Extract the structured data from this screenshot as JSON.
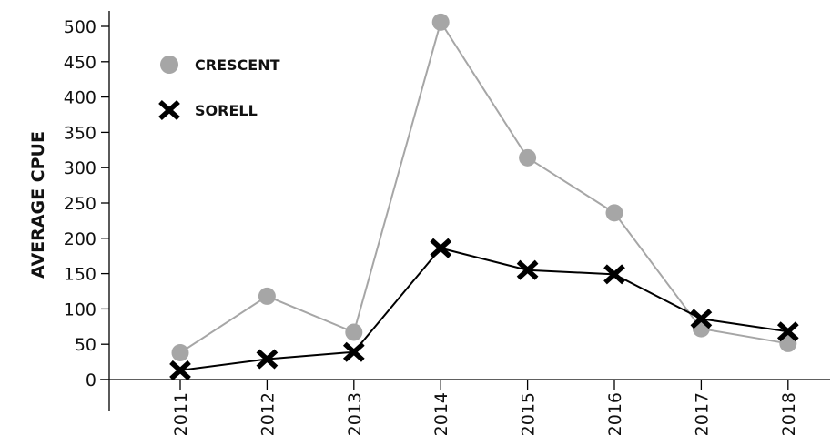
{
  "chart_data": {
    "type": "line",
    "title": "",
    "xlabel": "",
    "ylabel": "AVERAGE CPUE",
    "categories": [
      "2011",
      "2012",
      "2013",
      "2014",
      "2015",
      "2016",
      "2017",
      "2018"
    ],
    "ylim": [
      0,
      500
    ],
    "yticks": [
      "0",
      "50",
      "100",
      "150",
      "200",
      "250",
      "300",
      "350",
      "400",
      "450",
      "500"
    ],
    "grid": false,
    "legend_position": "top-left",
    "series": [
      {
        "name": "CRESCENT",
        "marker": "circle",
        "color": "#a6a6a6",
        "values": [
          38,
          118,
          67,
          506,
          314,
          236,
          72,
          51
        ]
      },
      {
        "name": "SORELL",
        "marker": "x",
        "color": "#000000",
        "values": [
          13,
          29,
          39,
          186,
          155,
          149,
          86,
          68
        ]
      }
    ]
  }
}
